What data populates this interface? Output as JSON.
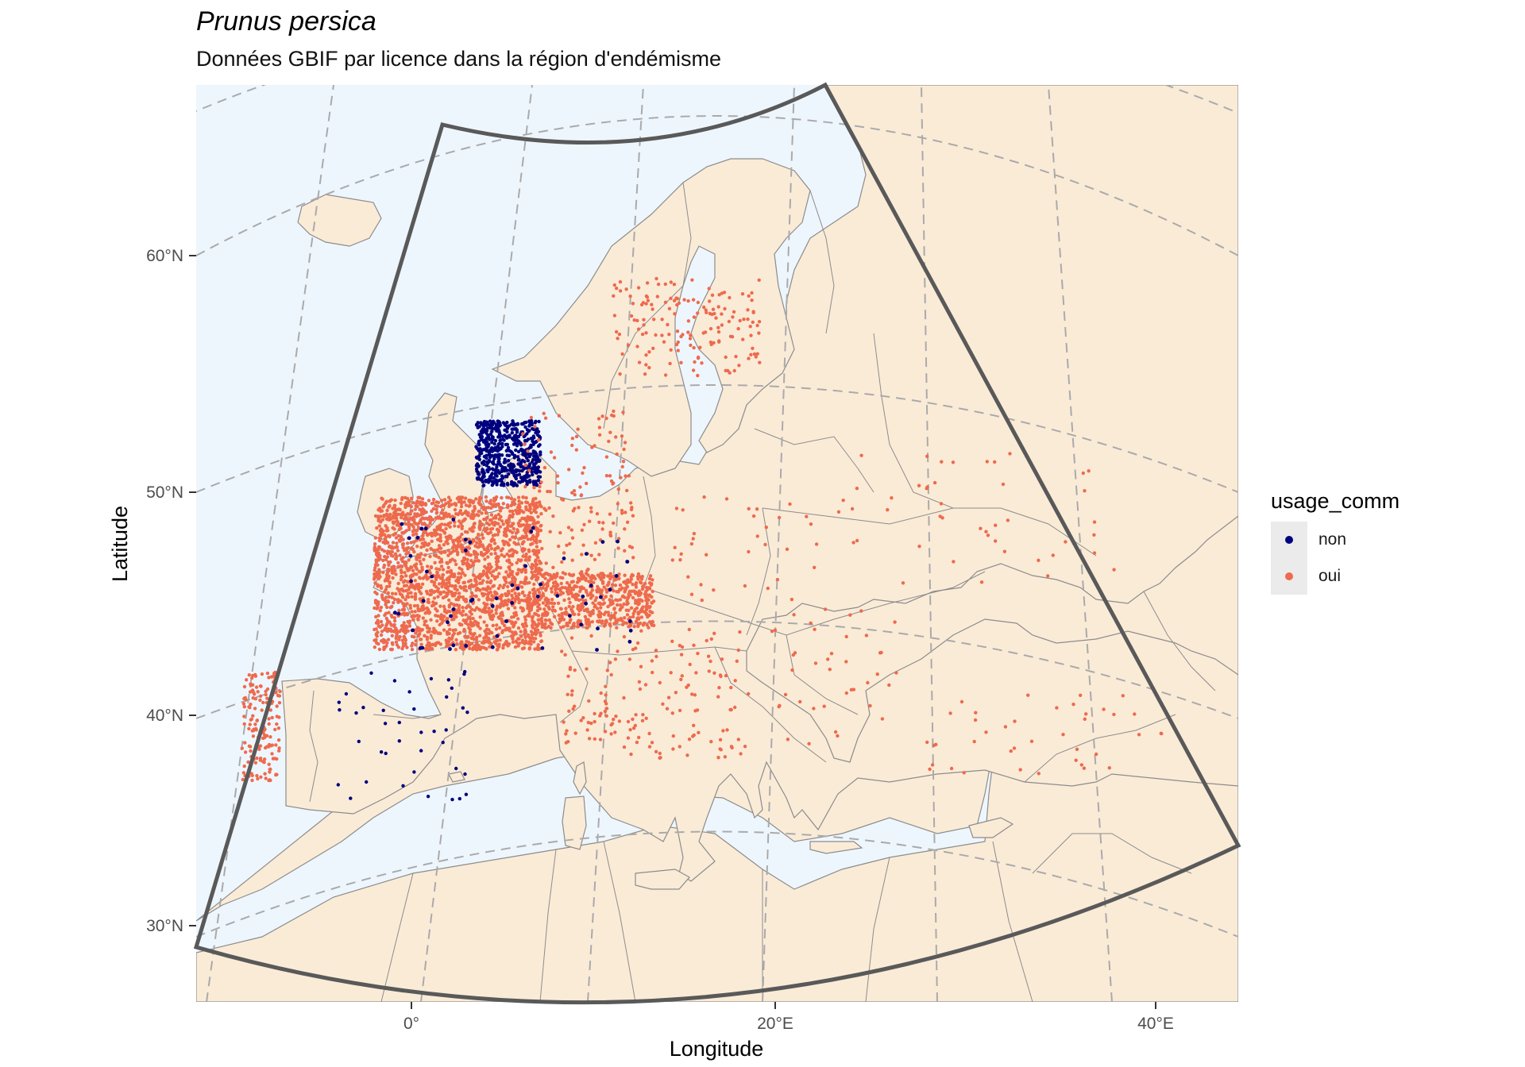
{
  "title": "Prunus persica",
  "subtitle": "Données GBIF par licence dans la région d'endémisme",
  "axes": {
    "x": {
      "label": "Longitude",
      "ticks": [
        "0°",
        "20°E",
        "40°E"
      ]
    },
    "y": {
      "label": "Latitude",
      "ticks": [
        "60°N",
        "50°N",
        "40°N",
        "30°N"
      ]
    }
  },
  "legend": {
    "title": "usage_comm",
    "items": [
      {
        "label": "non",
        "color": "#00007f"
      },
      {
        "label": "oui",
        "color": "#ee6a4d"
      }
    ]
  },
  "colors": {
    "land": "#faebd7",
    "sea": "#eef6fd",
    "border": "#8c8c8c",
    "graticule": "#aaaaaa",
    "region_outline": "#595959"
  },
  "map_data": {
    "region_of_endemism": {
      "lon_range": [
        -10,
        40
      ],
      "lat_range": [
        30,
        63
      ]
    },
    "occurrence_clusters": [
      {
        "area": "France",
        "lon": [
          -2,
          7
        ],
        "lat": [
          43,
          50
        ],
        "density": "very high",
        "usage_comm": "oui"
      },
      {
        "area": "Northern Italy",
        "lon": [
          7,
          13
        ],
        "lat": [
          44,
          46.5
        ],
        "density": "high",
        "usage_comm": "oui"
      },
      {
        "area": "Netherlands / Belgium",
        "lon": [
          3.5,
          7
        ],
        "lat": [
          50.5,
          53.5
        ],
        "density": "high",
        "usage_comm": "non"
      },
      {
        "area": "Italian peninsula",
        "lon": [
          8,
          18
        ],
        "lat": [
          38,
          44
        ],
        "density": "medium",
        "usage_comm": "oui"
      },
      {
        "area": "Germany / Switzerland",
        "lon": [
          6,
          12
        ],
        "lat": [
          46,
          54
        ],
        "density": "medium",
        "usage_comm": "oui"
      },
      {
        "area": "Southern Sweden",
        "lon": [
          11,
          19
        ],
        "lat": [
          55.5,
          60
        ],
        "density": "medium",
        "usage_comm": "oui"
      },
      {
        "area": "Portugal",
        "lon": [
          -9,
          -7
        ],
        "lat": [
          37,
          42
        ],
        "density": "medium",
        "usage_comm": "oui"
      },
      {
        "area": "Central Europe / Hungary",
        "lon": [
          14,
          24
        ],
        "lat": [
          45,
          50
        ],
        "density": "low",
        "usage_comm": "oui"
      },
      {
        "area": "Balkans / Greece",
        "lon": [
          19,
          26
        ],
        "lat": [
          38,
          45
        ],
        "density": "low",
        "usage_comm": "oui"
      },
      {
        "area": "Ukraine",
        "lon": [
          24,
          38
        ],
        "lat": [
          46,
          52
        ],
        "density": "low",
        "usage_comm": "oui"
      },
      {
        "area": "Turkey",
        "lon": [
          27,
          40
        ],
        "lat": [
          37,
          41
        ],
        "density": "low",
        "usage_comm": "oui"
      },
      {
        "area": "Spain",
        "lon": [
          -4,
          3
        ],
        "lat": [
          36,
          42
        ],
        "density": "low",
        "usage_comm": "non"
      }
    ]
  }
}
